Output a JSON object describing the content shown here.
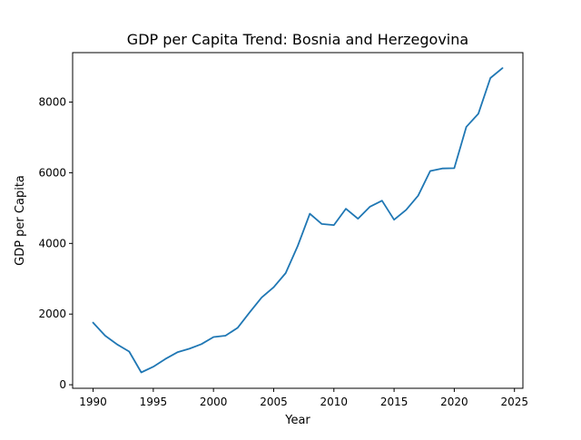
{
  "chart_data": {
    "type": "line",
    "title": "GDP per Capita Trend: Bosnia and Herzegovina",
    "xlabel": "Year",
    "ylabel": "GDP per Capita",
    "xlim": [
      1988.3,
      2025.7
    ],
    "ylim": [
      -100,
      9400
    ],
    "xticks": [
      1990,
      1995,
      2000,
      2005,
      2010,
      2015,
      2020,
      2025
    ],
    "yticks": [
      0,
      2000,
      4000,
      6000,
      8000
    ],
    "grid": false,
    "line_color": "#1f77b4",
    "series": [
      {
        "x": [
          1990,
          1991,
          1992,
          1993,
          1994,
          1995,
          1996,
          1997,
          1998,
          1999,
          2000,
          2001,
          2002,
          2003,
          2004,
          2005,
          2006,
          2007,
          2008,
          2009,
          2010,
          2011,
          2012,
          2013,
          2014,
          2015,
          2016,
          2017,
          2018,
          2019,
          2020,
          2021,
          2022,
          2023,
          2024
        ],
        "values": [
          1760,
          1390,
          1140,
          940,
          350,
          510,
          730,
          920,
          1020,
          1150,
          1350,
          1390,
          1610,
          2050,
          2470,
          2760,
          3160,
          3930,
          4840,
          4550,
          4520,
          4980,
          4700,
          5040,
          5210,
          4670,
          4950,
          5350,
          6050,
          6120,
          6130,
          7300,
          7670,
          8680,
          8960
        ]
      }
    ]
  }
}
